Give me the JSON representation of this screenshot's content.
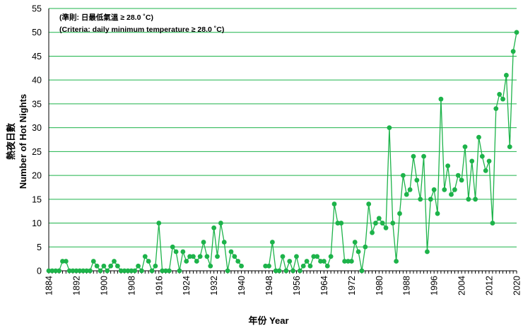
{
  "chart_data": {
    "type": "line",
    "xlabel": "年份 Year",
    "ylabel_line1": "熱夜日數",
    "ylabel_line2": "Number of Hot Nights",
    "annotation_line1": "(準則: 日最低氣溫 ≥ 28.0 ˚C)",
    "annotation_line2": "(Criteria: daily minimum temperature ≥ 28.0 ˚C)",
    "xlim": [
      1884,
      2020
    ],
    "ylim": [
      0,
      55
    ],
    "y_ticks": [
      0,
      5,
      10,
      15,
      20,
      25,
      30,
      35,
      40,
      45,
      50,
      55
    ],
    "x_ticks": [
      1884,
      1892,
      1900,
      1908,
      1916,
      1924,
      1932,
      1940,
      1948,
      1956,
      1964,
      1972,
      1980,
      1988,
      1996,
      2004,
      2012,
      2020
    ],
    "grid": "horizontal",
    "legend": "none",
    "color": "#1db34a",
    "segments": [
      {
        "x": [
          1884,
          1885,
          1886,
          1887,
          1888,
          1889,
          1890,
          1891,
          1892,
          1893,
          1894,
          1895,
          1896,
          1897,
          1898,
          1899,
          1900,
          1901,
          1902,
          1903,
          1904,
          1905,
          1906,
          1907,
          1908,
          1909,
          1910,
          1911,
          1912,
          1913,
          1914,
          1915,
          1916,
          1917,
          1918,
          1919,
          1920,
          1921,
          1922,
          1923,
          1924,
          1925,
          1926,
          1927,
          1928,
          1929,
          1930,
          1931,
          1932,
          1933,
          1934,
          1935,
          1936,
          1937,
          1938,
          1939
        ],
        "y": [
          0,
          0,
          0,
          0,
          2,
          2,
          0,
          0,
          0,
          0,
          0,
          0,
          0,
          2,
          1,
          0,
          1,
          0,
          1,
          2,
          1,
          0,
          0,
          0,
          0,
          0,
          1,
          0,
          3,
          2,
          0,
          1,
          10,
          0,
          0,
          0,
          5,
          4,
          0,
          4,
          2,
          3,
          3,
          2,
          3,
          6,
          3,
          1,
          9,
          3,
          10,
          6,
          0,
          4,
          3,
          2
        ]
      },
      {
        "x": [
          1939,
          1940
        ],
        "y": [
          2,
          1
        ]
      },
      {
        "x": [
          1947,
          1948,
          1949,
          1950,
          1951,
          1952,
          1953,
          1954,
          1955,
          1956,
          1957,
          1958,
          1959,
          1960,
          1961,
          1962,
          1963,
          1964,
          1965,
          1966,
          1967,
          1968,
          1969,
          1970,
          1971,
          1972,
          1973,
          1974,
          1975,
          1976,
          1977,
          1978,
          1979,
          1980,
          1981,
          1982,
          1983,
          1984,
          1985,
          1986,
          1987,
          1988,
          1989,
          1990,
          1991,
          1992,
          1993,
          1994,
          1995,
          1996,
          1997,
          1998,
          1999,
          2000,
          2001,
          2002,
          2003,
          2004,
          2005,
          2006,
          2007,
          2008,
          2009,
          2010,
          2011,
          2012,
          2013,
          2014,
          2015,
          2016,
          2017,
          2018,
          2019,
          2020
        ],
        "y": [
          1,
          1,
          6,
          0,
          0,
          3,
          0,
          2,
          0,
          3,
          0,
          1,
          2,
          1,
          3,
          3,
          2,
          2,
          1,
          3,
          14,
          10,
          10,
          2,
          2,
          2,
          6,
          4,
          0,
          5,
          14,
          8,
          10,
          11,
          10,
          9,
          30,
          10,
          2,
          12,
          20,
          16,
          17,
          24,
          19,
          15,
          24,
          4,
          15,
          17,
          12,
          36,
          17,
          22,
          16,
          17,
          20,
          19,
          26,
          15,
          23,
          15,
          28,
          24,
          21,
          23,
          10,
          34,
          37,
          36,
          41,
          26,
          46,
          50
        ]
      }
    ]
  }
}
